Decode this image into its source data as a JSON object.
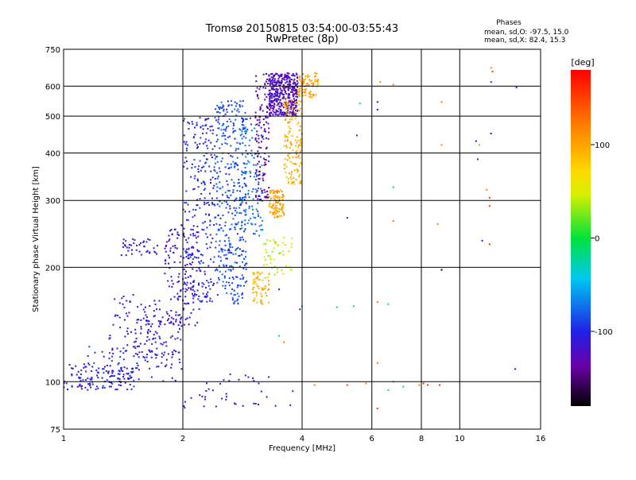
{
  "chart_data": {
    "type": "scatter",
    "title": "Tromsø 20150815 03:54:00-03:55:43",
    "subtitle": "RwPretec (8p)",
    "xlabel": "Frequency [MHz]",
    "ylabel": "Stationary phase Virtual Height [km]",
    "xscale": "log",
    "yscale": "log",
    "xlim": [
      1,
      16
    ],
    "ylim": [
      75,
      750
    ],
    "x_ticks": [
      1,
      2,
      4,
      6,
      8,
      10,
      16
    ],
    "x_tick_labels": [
      "1",
      "2",
      "4",
      "6",
      "8",
      "10",
      "16"
    ],
    "y_ticks": [
      75,
      100,
      200,
      300,
      400,
      500,
      600,
      750
    ],
    "y_tick_labels": [
      "75",
      "100",
      "200",
      "300",
      "400",
      "500",
      "600",
      "750"
    ],
    "grid": true,
    "colorbar": {
      "label": "[deg]",
      "range": [
        -180,
        180
      ],
      "ticks": [
        100,
        0,
        -100
      ],
      "tick_labels": [
        "100",
        "0",
        "-100"
      ]
    },
    "stats": {
      "title": "Phases",
      "o_line": "mean, sd,O:  -97.5, 15.0",
      "x_line": "mean, sd,X:  82.4, 15.3"
    },
    "point_groups": [
      {
        "x_range": [
          1.0,
          1.5
        ],
        "y_range": [
          95,
          112
        ],
        "phase": -110,
        "count": 120
      },
      {
        "x_range": [
          1.15,
          1.55
        ],
        "y_range": [
          95,
          125
        ],
        "phase": -90,
        "count": 40
      },
      {
        "x_range": [
          1.3,
          1.75
        ],
        "y_range": [
          115,
          170
        ],
        "phase": -110,
        "count": 80
      },
      {
        "x_range": [
          1.4,
          1.75
        ],
        "y_range": [
          215,
          240
        ],
        "phase": -110,
        "count": 40
      },
      {
        "x_range": [
          1.5,
          2.0
        ],
        "y_range": [
          100,
          150
        ],
        "phase": -110,
        "count": 100
      },
      {
        "x_range": [
          1.8,
          2.2
        ],
        "y_range": [
          140,
          260
        ],
        "phase": -115,
        "count": 140
      },
      {
        "x_range": [
          2.0,
          2.4
        ],
        "y_range": [
          160,
          500
        ],
        "phase": -100,
        "count": 250
      },
      {
        "x_range": [
          2.4,
          2.9
        ],
        "y_range": [
          160,
          550
        ],
        "phase": -85,
        "count": 400
      },
      {
        "x_range": [
          2.8,
          3.2
        ],
        "y_range": [
          240,
          500
        ],
        "phase": -75,
        "count": 120
      },
      {
        "x_range": [
          3.05,
          3.3
        ],
        "y_range": [
          300,
          650
        ],
        "phase": -135,
        "count": 120
      },
      {
        "x_range": [
          3.3,
          3.9
        ],
        "y_range": [
          500,
          650
        ],
        "phase": -125,
        "count": 400
      },
      {
        "x_range": [
          3.0,
          3.3
        ],
        "y_range": [
          160,
          195
        ],
        "phase": 95,
        "count": 60
      },
      {
        "x_range": [
          3.3,
          3.6
        ],
        "y_range": [
          270,
          320
        ],
        "phase": 100,
        "count": 100
      },
      {
        "x_range": [
          3.6,
          4.0
        ],
        "y_range": [
          330,
          560
        ],
        "phase": 95,
        "count": 150
      },
      {
        "x_range": [
          3.9,
          4.4
        ],
        "y_range": [
          560,
          650
        ],
        "phase": 100,
        "count": 80
      },
      {
        "x_range": [
          3.2,
          3.8
        ],
        "y_range": [
          190,
          240
        ],
        "phase": 40,
        "count": 50
      },
      {
        "x_range": [
          2.0,
          3.8
        ],
        "y_range": [
          85,
          105
        ],
        "phase": -110,
        "count": 40
      }
    ],
    "scattered_points": [
      {
        "x": 5.6,
        "y": 540,
        "phase": -20
      },
      {
        "x": 6.2,
        "y": 545,
        "phase": -120
      },
      {
        "x": 6.2,
        "y": 520,
        "phase": -120
      },
      {
        "x": 6.3,
        "y": 615,
        "phase": 120
      },
      {
        "x": 6.8,
        "y": 605,
        "phase": 120
      },
      {
        "x": 9.0,
        "y": 545,
        "phase": 120
      },
      {
        "x": 9.0,
        "y": 420,
        "phase": 120
      },
      {
        "x": 11.0,
        "y": 430,
        "phase": -100
      },
      {
        "x": 11.2,
        "y": 420,
        "phase": 20
      },
      {
        "x": 11.1,
        "y": 385,
        "phase": -110
      },
      {
        "x": 12.0,
        "y": 615,
        "phase": -110
      },
      {
        "x": 12.1,
        "y": 655,
        "phase": 150
      },
      {
        "x": 12.0,
        "y": 670,
        "phase": 120
      },
      {
        "x": 12.0,
        "y": 450,
        "phase": -120
      },
      {
        "x": 11.7,
        "y": 320,
        "phase": 120
      },
      {
        "x": 11.9,
        "y": 305,
        "phase": 160
      },
      {
        "x": 11.9,
        "y": 290,
        "phase": 150
      },
      {
        "x": 11.4,
        "y": 235,
        "phase": -110
      },
      {
        "x": 11.9,
        "y": 230,
        "phase": 160
      },
      {
        "x": 13.9,
        "y": 595,
        "phase": -110
      },
      {
        "x": 5.5,
        "y": 445,
        "phase": -110
      },
      {
        "x": 5.2,
        "y": 270,
        "phase": -120
      },
      {
        "x": 6.8,
        "y": 325,
        "phase": -20
      },
      {
        "x": 6.8,
        "y": 265,
        "phase": 120
      },
      {
        "x": 8.8,
        "y": 260,
        "phase": 120
      },
      {
        "x": 9.0,
        "y": 197,
        "phase": -180
      },
      {
        "x": 4.0,
        "y": 158,
        "phase": -20
      },
      {
        "x": 3.95,
        "y": 155,
        "phase": -110
      },
      {
        "x": 4.9,
        "y": 157,
        "phase": -20
      },
      {
        "x": 5.4,
        "y": 158,
        "phase": -20
      },
      {
        "x": 6.2,
        "y": 162,
        "phase": 120
      },
      {
        "x": 6.6,
        "y": 160,
        "phase": -20
      },
      {
        "x": 3.5,
        "y": 132,
        "phase": -20
      },
      {
        "x": 3.6,
        "y": 127,
        "phase": 120
      },
      {
        "x": 6.2,
        "y": 112,
        "phase": 120
      },
      {
        "x": 6.8,
        "y": 100,
        "phase": -20
      },
      {
        "x": 7.2,
        "y": 97,
        "phase": -20
      },
      {
        "x": 7.9,
        "y": 98,
        "phase": 120
      },
      {
        "x": 8.1,
        "y": 99,
        "phase": 160
      },
      {
        "x": 8.3,
        "y": 98,
        "phase": 150
      },
      {
        "x": 8.9,
        "y": 98,
        "phase": 160
      },
      {
        "x": 5.8,
        "y": 99,
        "phase": 120
      },
      {
        "x": 4.3,
        "y": 98,
        "phase": 120
      },
      {
        "x": 6.2,
        "y": 85,
        "phase": 150
      },
      {
        "x": 5.2,
        "y": 98,
        "phase": 150
      },
      {
        "x": 13.8,
        "y": 108,
        "phase": -110
      },
      {
        "x": 6.6,
        "y": 95,
        "phase": -20
      },
      {
        "x": 3.5,
        "y": 175,
        "phase": -110
      }
    ]
  }
}
